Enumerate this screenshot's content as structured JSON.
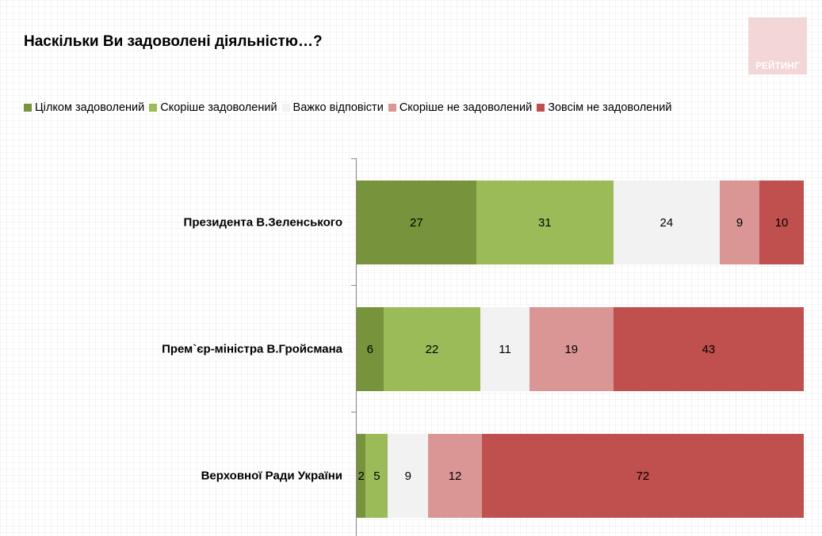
{
  "title": "Наскільки Ви задоволені діяльністю…?",
  "logo_text": "РЕЙТИНГ",
  "chart_data": {
    "type": "bar",
    "orientation": "horizontal",
    "stacked": true,
    "title": "Наскільки Ви задоволені діяльністю…?",
    "categories": [
      "Президента В.Зеленського",
      "Прем`єр-міністра В.Гройсмана",
      "Верховної Ради України"
    ],
    "series": [
      {
        "name": "Цілком задоволений",
        "color": "#77933c",
        "values": [
          27,
          6,
          2
        ]
      },
      {
        "name": "Скоріше задоволений",
        "color": "#9bbb59",
        "values": [
          31,
          22,
          5
        ]
      },
      {
        "name": "Важко відповісти",
        "color": "#f2f2f2",
        "values": [
          24,
          11,
          9
        ]
      },
      {
        "name": "Скоріше не задоволений",
        "color": "#d99694",
        "values": [
          9,
          19,
          12
        ]
      },
      {
        "name": "Зовсім не задоволений",
        "color": "#c0504d",
        "values": [
          10,
          43,
          72
        ]
      }
    ],
    "legend_position": "top",
    "grid": false
  }
}
